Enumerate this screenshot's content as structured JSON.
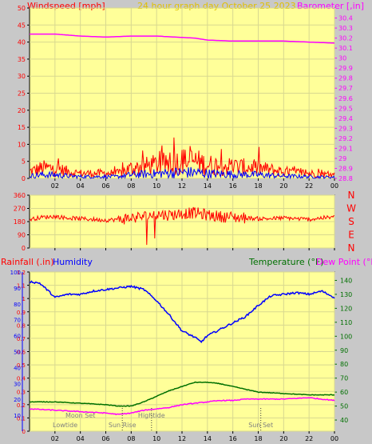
{
  "header": {
    "left_title": "Windspeed [mph]",
    "center_title": "24 hour graph day   October 25 2023",
    "right_title": "Barometer [,in]"
  },
  "colors": {
    "background": "#c8c8c8",
    "plot_bg": "#ffff99",
    "grid": "#d8d890",
    "wind": "#ff0000",
    "gust": "#0000ff",
    "barometer": "#ff00ff",
    "direction": "#ff0000",
    "humidity": "#0000ff",
    "temperature": "#007000",
    "dewpoint": "#ff00ff",
    "rain_axis": "#0000ff",
    "temp_axis": "#007000",
    "baro_axis": "#ff00ff"
  },
  "x_ticks": [
    "02",
    "04",
    "06",
    "08",
    "10",
    "12",
    "14",
    "16",
    "18",
    "20",
    "22",
    "00"
  ],
  "chart_data": [
    {
      "type": "bar",
      "name": "wind-baro",
      "x_range": [
        0,
        24
      ],
      "wind_ylim": [
        0,
        50
      ],
      "wind_ticks": [
        0,
        5,
        10,
        15,
        20,
        25,
        30,
        35,
        40,
        45,
        50
      ],
      "baro_ylim": [
        28.8,
        30.5
      ],
      "baro_ticks": [
        "28.8",
        "28.9",
        "29",
        "29.1",
        "29.2",
        "29.3",
        "29.4",
        "29.5",
        "29.6",
        "29.7",
        "29.8",
        "29.9",
        "30",
        "30.1",
        "30.2",
        "30.3",
        "30.4"
      ],
      "wind_profile": {
        "x": [
          0,
          1,
          2,
          3,
          4,
          5,
          6,
          7,
          8,
          10,
          12,
          13,
          14,
          16,
          18,
          20,
          22,
          24
        ],
        "y": [
          2,
          3,
          3,
          2,
          1.5,
          1.5,
          1.5,
          1.5,
          3,
          4,
          5,
          5,
          4,
          3.5,
          3,
          2,
          1.5,
          1
        ]
      },
      "barometer": {
        "x": [
          0,
          2,
          4,
          6,
          8,
          10,
          13,
          14,
          16,
          18,
          20,
          22,
          24
        ],
        "y": [
          30.24,
          30.24,
          30.22,
          30.21,
          30.22,
          30.22,
          30.2,
          30.18,
          30.17,
          30.17,
          30.17,
          30.16,
          30.15
        ]
      }
    },
    {
      "type": "line",
      "name": "wind-direction",
      "x_range": [
        0,
        24
      ],
      "ylim": [
        0,
        360
      ],
      "ticks": [
        0,
        90,
        180,
        270,
        360
      ],
      "labels_right": [
        "N",
        "W",
        "S",
        "E",
        "N"
      ],
      "series": {
        "x": [
          0,
          1,
          2,
          3,
          4,
          5,
          6,
          7,
          8,
          9,
          10,
          11,
          12,
          13,
          14,
          15,
          16,
          17,
          18,
          19,
          20,
          21,
          22,
          23,
          24
        ],
        "y": [
          195,
          210,
          215,
          205,
          200,
          195,
          190,
          195,
          205,
          215,
          230,
          225,
          235,
          240,
          225,
          215,
          210,
          205,
          200,
          200,
          205,
          200,
          195,
          205,
          210
        ]
      }
    },
    {
      "type": "line",
      "name": "humidity-temp",
      "x_range": [
        0,
        24
      ],
      "rain_ylim": [
        0,
        1.2
      ],
      "rain_ticks": [
        "0",
        "0.1",
        "0.2",
        "0.3",
        "0.4",
        "0.5",
        "0.6",
        "0.7",
        "0.8",
        "0.9",
        "1",
        "1.1",
        "1.2"
      ],
      "humidity_ylim": [
        0,
        100
      ],
      "humidity_ticks": [
        10,
        20,
        30,
        40,
        50,
        60,
        70,
        80,
        90,
        100
      ],
      "temp_ylim": [
        32,
        146
      ],
      "temp_ticks": [
        40,
        50,
        60,
        70,
        80,
        90,
        100,
        110,
        120,
        130,
        140
      ],
      "humidity": {
        "x": [
          0,
          0.8,
          1.5,
          2,
          3,
          4,
          5,
          6,
          7,
          8,
          9,
          10,
          11,
          12,
          13,
          13.5,
          14,
          15,
          16,
          17,
          18,
          19,
          20,
          21,
          22,
          23,
          24
        ],
        "y": [
          94,
          93,
          88,
          84,
          86,
          86,
          88,
          89,
          90,
          91,
          89,
          82,
          73,
          63,
          59,
          56,
          60,
          64,
          68,
          72,
          79,
          85,
          86,
          87,
          86,
          88,
          84
        ]
      },
      "temperature": {
        "x": [
          0,
          2,
          4,
          6,
          7,
          8,
          9,
          10,
          11,
          12,
          13,
          14,
          15,
          16,
          17,
          18,
          20,
          22,
          24
        ],
        "y": [
          53,
          53,
          52,
          51,
          50,
          50,
          53,
          57,
          61,
          64,
          67,
          67,
          66,
          64,
          62,
          60,
          59,
          58,
          58
        ]
      },
      "dewpoint": {
        "x": [
          0,
          2,
          4,
          6,
          7,
          8,
          9,
          10,
          11,
          12,
          13,
          14,
          15,
          16,
          17,
          18,
          20,
          22,
          24
        ],
        "y": [
          48,
          47,
          46,
          45,
          44,
          45,
          47,
          48,
          49,
          51,
          52,
          53,
          54,
          54,
          55,
          55,
          55,
          56,
          54
        ]
      },
      "events": [
        {
          "label": "Moon Set",
          "x": 4.0,
          "row": 1,
          "dotted": false
        },
        {
          "label": "Lowtide",
          "x": 2.8,
          "row": 2,
          "dotted": false
        },
        {
          "label": "Sun Rise",
          "x": 7.3,
          "row": 2,
          "dotted": true
        },
        {
          "label": "Hightide",
          "x": 9.6,
          "row": 1,
          "dotted": true
        },
        {
          "label": "Sun Set",
          "x": 18.2,
          "row": 2,
          "dotted": true
        }
      ]
    }
  ],
  "panel2_labels": {
    "rain": "Rainfall (.in)",
    "humidity": "Humidity",
    "temp": "Temperature (°F)",
    "dew": "Dew Point (°F)"
  }
}
